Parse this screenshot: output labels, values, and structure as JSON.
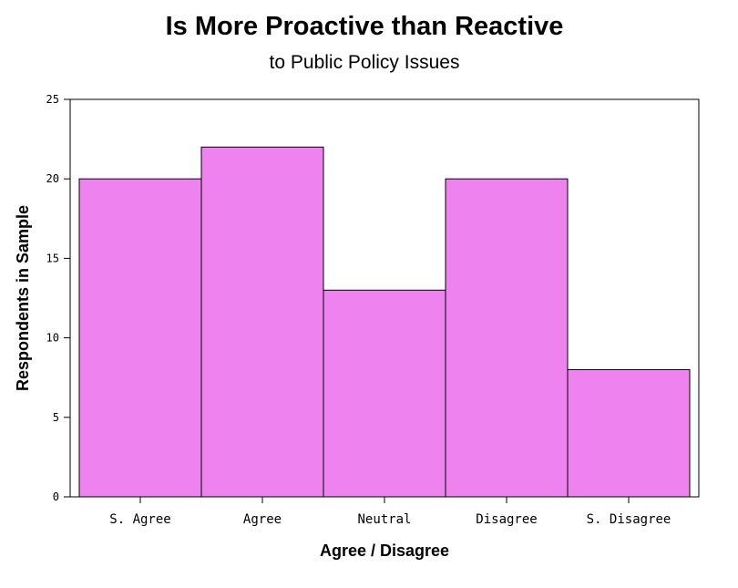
{
  "chart_data": {
    "type": "bar",
    "title": "Is More Proactive than Reactive",
    "subtitle": "to Public Policy Issues",
    "xlabel": "Agree / Disagree",
    "ylabel": "Respondents in Sample",
    "categories": [
      "S. Agree",
      "Agree",
      "Neutral",
      "Disagree",
      "S. Disagree"
    ],
    "values": [
      20,
      22,
      13,
      20,
      8
    ],
    "ylim": [
      0,
      25
    ],
    "yticks": [
      0,
      5,
      10,
      15,
      20,
      25
    ],
    "bar_color": "#ee82ee",
    "grid": false,
    "legend": "none"
  }
}
